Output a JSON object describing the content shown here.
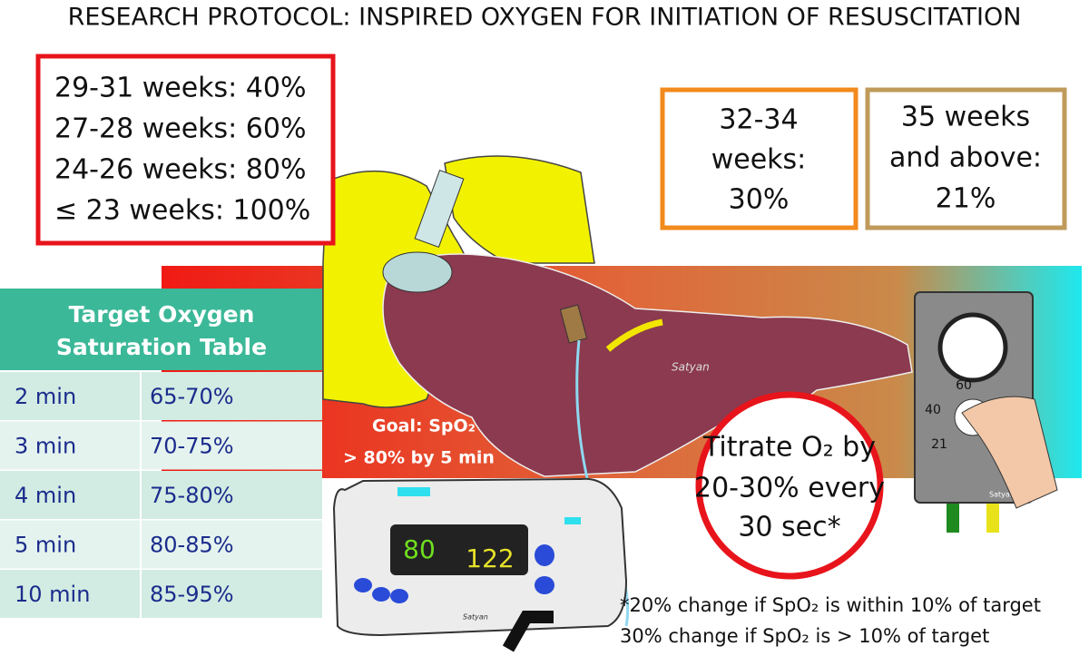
{
  "title": "RESEARCH PROTOCOL: INSPIRED OXYGEN FOR INITIATION OF RESUSCITATION",
  "gestational_box": {
    "lines": [
      "29-31 weeks: 40%",
      "27-28 weeks: 60%",
      "24-26 weeks: 80%",
      "≤ 23 weeks:  100%"
    ]
  },
  "box_32_34": {
    "lines": [
      "32-34",
      "weeks:",
      "30%"
    ]
  },
  "box_35": {
    "lines": [
      "35 weeks",
      "and above:",
      "21%"
    ]
  },
  "saturation_table": {
    "title": [
      "Target Oxygen",
      "Saturation Table"
    ],
    "rows": [
      [
        "2 min",
        "65-70%"
      ],
      [
        "3 min",
        "70-75%"
      ],
      [
        "4 min",
        "75-80%"
      ],
      [
        "5 min",
        "80-85%"
      ],
      [
        "10 min",
        "85-95%"
      ]
    ]
  },
  "goal": [
    "Goal: SpO₂",
    ">  80% by 5 min"
  ],
  "monitor": {
    "spo2": "80",
    "heart_rate": "122"
  },
  "blender": {
    "dial_labels": [
      "60",
      "40",
      "21"
    ]
  },
  "titrate": [
    "Titrate O₂ by",
    "20-30% every",
    "30 sec*"
  ],
  "footnote": [
    "*20% change if SpO₂ is within 10% of target",
    "30% change if SpO₂ is > 10% of target"
  ],
  "signature": "Satyan"
}
